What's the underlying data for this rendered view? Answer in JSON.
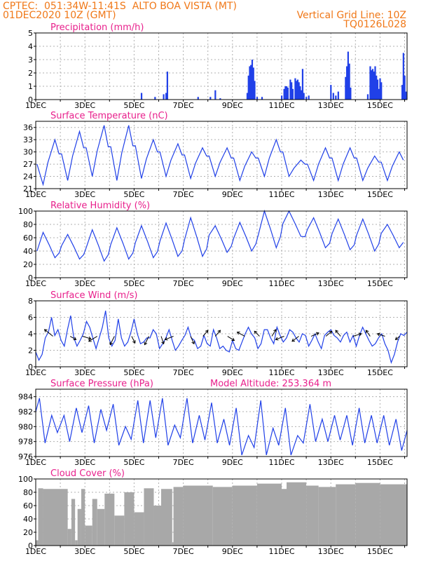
{
  "header": {
    "line1": "CPTEC:  051:34W-11:41S  ALTO BOA VISTA (MT)",
    "line2_left": "01DEC2020 10Z (GMT)",
    "line2_right": "Vertical Grid Line: 10Z",
    "line3_right": "TQ0126L028"
  },
  "colors": {
    "header": "#f07818",
    "title": "#e8208c",
    "series": "#2040e8",
    "cloud": "#a8a8a8",
    "grid": "#b0b0b0"
  },
  "chart_data": [
    {
      "type": "bar",
      "title": "Precipitation (mm/h)",
      "ylim": [
        0,
        5
      ],
      "yticks": [
        0,
        1,
        2,
        3,
        4,
        5
      ],
      "xticks": [
        "1DEC",
        "3DEC",
        "5DEC",
        "7DEC",
        "9DEC",
        "11DEC",
        "13DEC",
        "15DEC"
      ],
      "x_start_day": 1,
      "x_end_day": 16.1,
      "bars": [
        [
          5.3,
          0.5
        ],
        [
          5.85,
          0.2
        ],
        [
          6.2,
          0.4
        ],
        [
          6.3,
          0.5
        ],
        [
          6.35,
          2.1
        ],
        [
          7.6,
          0.2
        ],
        [
          8.1,
          0.2
        ],
        [
          8.3,
          0.7
        ],
        [
          8.5,
          0.1
        ],
        [
          9.6,
          0.5
        ],
        [
          9.65,
          1.8
        ],
        [
          9.7,
          2.5
        ],
        [
          9.75,
          2.6
        ],
        [
          9.8,
          3.0
        ],
        [
          9.85,
          2.4
        ],
        [
          9.9,
          1.4
        ],
        [
          10.0,
          0.2
        ],
        [
          10.2,
          0.2
        ],
        [
          11.0,
          0.3
        ],
        [
          11.1,
          0.8
        ],
        [
          11.15,
          1.0
        ],
        [
          11.2,
          1.0
        ],
        [
          11.25,
          0.9
        ],
        [
          11.35,
          1.5
        ],
        [
          11.4,
          1.3
        ],
        [
          11.45,
          0.8
        ],
        [
          11.55,
          1.6
        ],
        [
          11.6,
          1.4
        ],
        [
          11.65,
          1.5
        ],
        [
          11.7,
          1.3
        ],
        [
          11.75,
          1.0
        ],
        [
          11.8,
          0.7
        ],
        [
          11.85,
          2.3
        ],
        [
          11.9,
          0.5
        ],
        [
          12.0,
          0.2
        ],
        [
          12.1,
          0.3
        ],
        [
          13.0,
          1.1
        ],
        [
          13.1,
          0.5
        ],
        [
          13.2,
          0.3
        ],
        [
          13.3,
          0.6
        ],
        [
          13.6,
          1.7
        ],
        [
          13.65,
          2.5
        ],
        [
          13.7,
          3.6
        ],
        [
          13.75,
          2.7
        ],
        [
          13.8,
          0.9
        ],
        [
          14.5,
          0.4
        ],
        [
          14.6,
          2.5
        ],
        [
          14.65,
          2.2
        ],
        [
          14.7,
          2.3
        ],
        [
          14.75,
          2.1
        ],
        [
          14.8,
          2.5
        ],
        [
          14.85,
          1.8
        ],
        [
          14.9,
          1.5
        ],
        [
          14.95,
          0.8
        ],
        [
          15.0,
          1.6
        ],
        [
          15.05,
          1.3
        ],
        [
          15.9,
          1.1
        ],
        [
          15.95,
          3.5
        ],
        [
          16.0,
          1.8
        ],
        [
          16.05,
          0.6
        ]
      ]
    },
    {
      "type": "line",
      "title": "Surface Temperature (nC)",
      "ylim": [
        21,
        37.5
      ],
      "yticks": [
        21,
        24,
        27,
        30,
        33,
        36
      ],
      "xticks": [
        "1DEC",
        "3DEC",
        "5DEC",
        "7DEC",
        "9DEC",
        "11DEC",
        "13DEC",
        "15DEC"
      ],
      "daily_max": [
        33,
        35,
        36.5,
        36.5,
        33,
        32,
        31,
        31,
        30,
        33,
        28,
        31,
        31,
        29,
        30
      ],
      "daily_min": [
        22,
        23,
        24,
        23,
        23.5,
        24,
        23.5,
        24,
        23,
        24,
        24,
        23,
        23,
        23,
        23
      ]
    },
    {
      "type": "line",
      "title": "Relative Humidity (%)",
      "ylim": [
        0,
        100
      ],
      "yticks": [
        0,
        20,
        40,
        60,
        80,
        100
      ],
      "xticks": [
        "1DEC",
        "3DEC",
        "5DEC",
        "7DEC",
        "9DEC",
        "11DEC",
        "13DEC",
        "15DEC"
      ],
      "daily_max": [
        68,
        65,
        72,
        75,
        78,
        82,
        90,
        78,
        83,
        100,
        100,
        90,
        88,
        88,
        80
      ],
      "daily_min": [
        30,
        28,
        25,
        28,
        30,
        32,
        32,
        38,
        40,
        45,
        62,
        45,
        42,
        40,
        45
      ]
    },
    {
      "type": "line",
      "title": "Surface Wind (m/s)",
      "ylim": [
        0,
        8
      ],
      "yticks": [
        0,
        2,
        4,
        6,
        8
      ],
      "xticks": [
        "1DEC",
        "3DEC",
        "5DEC",
        "7DEC",
        "9DEC",
        "11DEC",
        "13DEC",
        "15DEC"
      ],
      "speed": [
        1.8,
        0.8,
        1.5,
        3.5,
        4.2,
        6.0,
        3.8,
        4.5,
        3.2,
        2.5,
        4.5,
        6.2,
        3.5,
        2.5,
        3.2,
        4.0,
        5.5,
        4.8,
        3.5,
        2.2,
        3.5,
        4.8,
        6.8,
        3.5,
        2.5,
        3.2,
        5.8,
        3.5,
        2.5,
        3.0,
        4.2,
        5.8,
        4.0,
        2.8,
        3.0,
        3.5,
        3.5,
        4.5,
        4.0,
        2.2,
        2.8,
        3.5,
        4.5,
        3.2,
        2.0,
        2.5,
        3.2,
        3.8,
        4.8,
        3.5,
        3.2,
        2.2,
        2.5,
        3.8,
        2.8,
        2.5,
        4.5,
        3.5,
        2.2,
        2.5,
        2.0,
        1.8,
        3.2,
        2.2,
        2.0,
        3.0,
        4.0,
        4.8,
        4.0,
        3.5,
        2.2,
        2.8,
        4.5,
        4.5,
        3.5,
        2.8,
        4.8,
        3.8,
        3.0,
        3.5,
        4.5,
        4.2,
        3.5,
        3.0,
        4.0,
        3.8,
        2.5,
        3.2,
        4.0,
        3.0,
        2.2,
        3.8,
        4.2,
        4.5,
        3.8,
        3.5,
        3.0,
        3.8,
        4.2,
        3.0,
        3.8,
        2.5,
        3.8,
        4.8,
        4.0,
        3.2,
        2.5,
        2.8,
        3.5,
        4.0,
        2.8,
        2.0,
        0.5,
        1.5,
        3.0,
        4.0,
        3.8,
        4.2
      ],
      "vectors": [
        [
          1.7,
          -1,
          0.8
        ],
        [
          2.4,
          0.7,
          -0.4
        ],
        [
          2.9,
          1,
          -0.3
        ],
        [
          3.5,
          -1,
          -0.6
        ],
        [
          4.2,
          -0.5,
          -1
        ],
        [
          4.9,
          0.4,
          -0.8
        ],
        [
          5.6,
          -0.5,
          -1
        ],
        [
          6.1,
          0.3,
          -0.9
        ],
        [
          6.6,
          -1,
          -0.4
        ],
        [
          7.3,
          0.4,
          -0.9
        ],
        [
          7.8,
          0.6,
          0.7
        ],
        [
          8.3,
          0.6,
          0.7
        ],
        [
          8.8,
          0.8,
          -0.5
        ],
        [
          9.5,
          -0.9,
          0.5
        ],
        [
          10.1,
          -0.6,
          0.6
        ],
        [
          10.6,
          0.5,
          0.8
        ],
        [
          11.1,
          -1,
          -0.4
        ],
        [
          11.7,
          -0.8,
          -0.6
        ],
        [
          12.2,
          0.9,
          0.4
        ],
        [
          12.8,
          0.7,
          0.6
        ],
        [
          13.4,
          -0.6,
          0.7
        ],
        [
          13.9,
          1,
          0.3
        ],
        [
          14.6,
          -0.5,
          0.7
        ],
        [
          15.2,
          -0.9,
          0.3
        ],
        [
          15.8,
          -0.5,
          -0.4
        ]
      ]
    },
    {
      "type": "line",
      "title": "Surface Pressure (hPa)",
      "annotation": "Model Altitude: 253.364  m",
      "ylim": [
        976,
        985
      ],
      "yticks": [
        976,
        978,
        980,
        982,
        984
      ],
      "xticks": [
        "1DEC",
        "3DEC",
        "5DEC",
        "7DEC",
        "9DEC",
        "11DEC",
        "13DEC",
        "15DEC"
      ],
      "semi_max": [
        983.8,
        981.5,
        981.5,
        982.5,
        982.8,
        982.3,
        983,
        980,
        983.5,
        983.5,
        983.8,
        980.2,
        983.8,
        981.5,
        983.2,
        981,
        982.5,
        978.8,
        983.5,
        979.8,
        982.5,
        978.8,
        983,
        981,
        981.5,
        981.5,
        982.5,
        981.5,
        981.5,
        981
      ],
      "semi_min": [
        977.8,
        979.2,
        978,
        979.2,
        977.8,
        979.5,
        977.5,
        978.3,
        977.8,
        978.5,
        977.5,
        978.5,
        977.8,
        978.2,
        977.8,
        977.5,
        976.2,
        977.2,
        976.2,
        977.5,
        976.2,
        977.8,
        978,
        978,
        978.2,
        977.5,
        977.8,
        977.8,
        977.5,
        976.8
      ]
    },
    {
      "type": "bar",
      "title": "Cloud Cover (%)",
      "ylim": [
        0,
        100
      ],
      "yticks": [
        0,
        20,
        40,
        60,
        80,
        100
      ],
      "xticks": [
        "1DEC",
        "3DEC",
        "5DEC",
        "7DEC",
        "9DEC",
        "11DEC",
        "13DEC",
        "15DEC"
      ],
      "segments": [
        [
          1.0,
          1.1,
          8
        ],
        [
          1.1,
          1.3,
          86
        ],
        [
          1.3,
          2.3,
          85
        ],
        [
          2.3,
          2.45,
          25
        ],
        [
          2.45,
          2.6,
          70
        ],
        [
          2.6,
          2.7,
          8
        ],
        [
          2.7,
          2.85,
          55
        ],
        [
          2.85,
          3.0,
          85
        ],
        [
          3.0,
          3.3,
          30
        ],
        [
          3.3,
          3.5,
          70
        ],
        [
          3.5,
          3.8,
          55
        ],
        [
          3.8,
          4.2,
          78
        ],
        [
          4.2,
          4.6,
          45
        ],
        [
          4.6,
          5.0,
          80
        ],
        [
          5.0,
          5.4,
          50
        ],
        [
          5.4,
          5.8,
          86
        ],
        [
          5.8,
          6.1,
          60
        ],
        [
          6.1,
          6.55,
          85
        ],
        [
          6.55,
          6.6,
          5
        ],
        [
          6.6,
          7.0,
          88
        ],
        [
          7.0,
          8.2,
          90
        ],
        [
          8.2,
          9.0,
          88
        ],
        [
          9.0,
          10.0,
          90
        ],
        [
          10.0,
          11.0,
          93
        ],
        [
          11.0,
          11.2,
          85
        ],
        [
          11.2,
          12.0,
          95
        ],
        [
          12.0,
          12.5,
          90
        ],
        [
          12.5,
          13.2,
          88
        ],
        [
          13.2,
          14.0,
          92
        ],
        [
          14.0,
          15.0,
          94
        ],
        [
          15.0,
          16.1,
          92
        ]
      ]
    }
  ]
}
